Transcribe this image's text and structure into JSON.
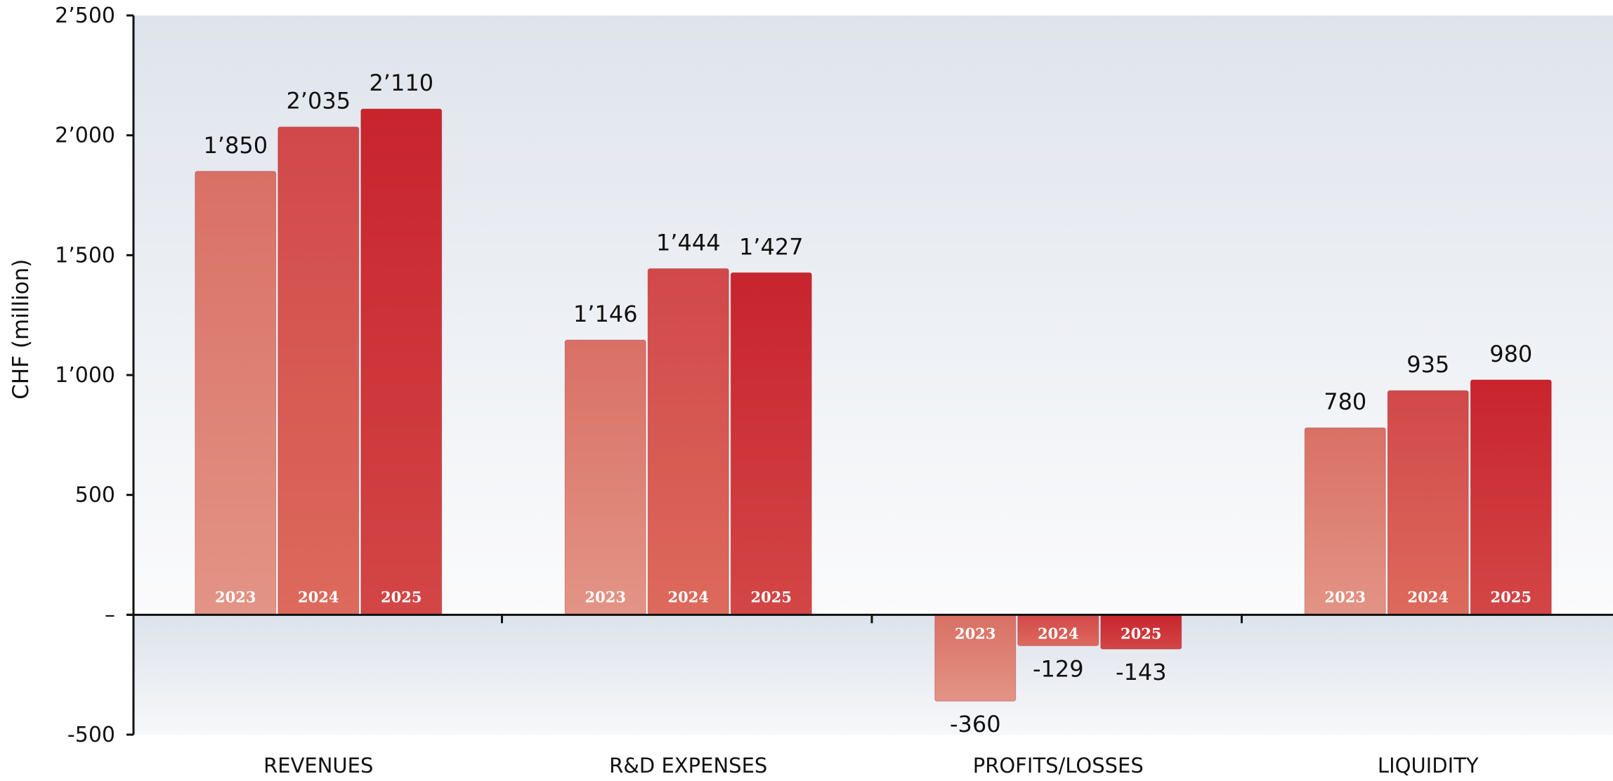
{
  "chart_data": {
    "type": "bar",
    "title": "",
    "xlabel": "",
    "ylabel": "CHF (million)",
    "ylim": [
      -500,
      2500
    ],
    "yticks": [
      {
        "value": 2500,
        "label": "2’500"
      },
      {
        "value": 2000,
        "label": "2’000"
      },
      {
        "value": 1500,
        "label": "1’500"
      },
      {
        "value": 1000,
        "label": "1’000"
      },
      {
        "value": 500,
        "label": "500"
      },
      {
        "value": 0,
        "label": "–"
      },
      {
        "value": -500,
        "label": "-500"
      }
    ],
    "categories": [
      "REVENUES",
      "R&D EXPENSES",
      "PROFITS/LOSSES",
      "LIQUIDITY"
    ],
    "series": [
      {
        "name": "2023",
        "values": [
          1850,
          1146,
          -360,
          780
        ],
        "labels": [
          "1’850",
          "1’146",
          "-360",
          "780"
        ]
      },
      {
        "name": "2024",
        "values": [
          2035,
          1444,
          -129,
          935
        ],
        "labels": [
          "2’035",
          "1’444",
          "-129",
          "935"
        ]
      },
      {
        "name": "2025",
        "values": [
          2110,
          1427,
          -143,
          980
        ],
        "labels": [
          "2’110",
          "1’427",
          "-143",
          "980"
        ]
      }
    ],
    "colors": {
      "2023": [
        "#e39486",
        "#d97065"
      ],
      "2024": [
        "#dd6a5c",
        "#d1484a"
      ],
      "2025": [
        "#d34646",
        "#c8242d"
      ]
    },
    "grid": false,
    "legend": "none; series years printed inside bars"
  }
}
